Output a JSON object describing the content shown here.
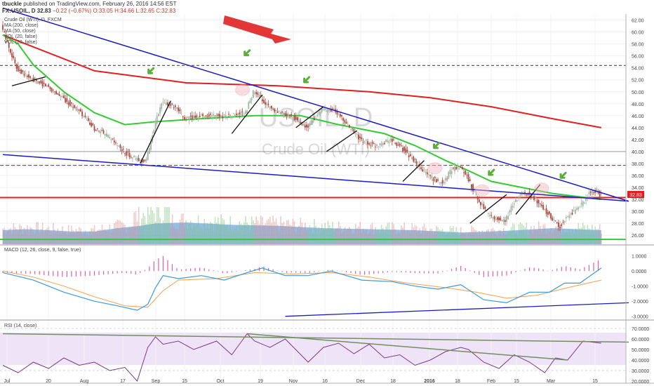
{
  "header": {
    "user": "tbuckle",
    "published_text": "published on TradingView.com, February 26, 2016 14:56 EST",
    "symbol": "FX:USOIL, D",
    "last": "32.83",
    "change": "−0.22 (−0.67%)",
    "ohlc": "O:33.05 H:34.66 L:32.65 C:32.83"
  },
  "legend": {
    "title": "Crude Oil (WTI), D, FXCM",
    "ma200": "MA (200, close)",
    "ma50": "MA (50, close)",
    "vol": "VOL (20, false)",
    "vol2": "VOL (20, false)"
  },
  "watermark": {
    "symbol": "USOIL, D",
    "name": "Crude Oil (WTI)"
  },
  "price_label": "32.83",
  "macd_label": "MACD (12, 26, close, 9, false, true)",
  "rsi_label": "RSI (14, close)",
  "colors": {
    "bull": "#9fb4a3",
    "bear": "#a8493f",
    "ma50": "#33cc33",
    "ma200": "#e02020",
    "trend": "#1c1cc4",
    "macd": "#3a9ad9",
    "signal": "#f0a050",
    "hist": "#e060a0",
    "rsi": "#7a3a8a",
    "volume": "#5b9bd5"
  },
  "chart_data": [
    {
      "type": "candlestick",
      "title": "USOIL, D",
      "ylim": [
        24.5,
        63
      ],
      "y_ticks": [
        "62.00",
        "60.00",
        "58.00",
        "56.00",
        "54.00",
        "52.00",
        "50.00",
        "48.00",
        "46.00",
        "44.00",
        "42.00",
        "40.00",
        "38.00",
        "36.00",
        "34.00",
        "32.00",
        "30.00",
        "28.00",
        "26.00"
      ],
      "x_ticks": [
        "Jul",
        "20",
        "Aug",
        "17",
        "Sep",
        "15",
        "Oct",
        "19",
        "Nov",
        "16",
        "Dec",
        "18",
        "2016",
        "18",
        "Feb",
        "15",
        "Mar",
        "15"
      ],
      "anchors": [
        [
          0,
          61
        ],
        [
          10,
          54
        ],
        [
          20,
          52
        ],
        [
          30,
          51
        ],
        [
          40,
          49
        ],
        [
          50,
          47
        ],
        [
          60,
          44
        ],
        [
          70,
          42.5
        ],
        [
          80,
          40
        ],
        [
          90,
          38.5
        ],
        [
          95,
          38.5
        ],
        [
          100,
          44
        ],
        [
          105,
          48
        ],
        [
          110,
          48
        ],
        [
          115,
          47
        ],
        [
          120,
          45.5
        ],
        [
          130,
          46
        ],
        [
          140,
          46
        ],
        [
          150,
          46
        ],
        [
          160,
          46.5
        ],
        [
          165,
          50
        ],
        [
          170,
          49
        ],
        [
          175,
          47.5
        ],
        [
          180,
          46.5
        ],
        [
          190,
          46
        ],
        [
          200,
          44
        ],
        [
          210,
          47
        ],
        [
          218,
          47
        ],
        [
          225,
          45
        ],
        [
          235,
          42
        ],
        [
          245,
          41
        ],
        [
          255,
          42
        ],
        [
          265,
          40
        ],
        [
          275,
          37
        ],
        [
          285,
          35
        ],
        [
          290,
          35
        ],
        [
          295,
          37
        ],
        [
          300,
          37.5
        ],
        [
          305,
          36
        ],
        [
          310,
          33
        ],
        [
          320,
          29
        ],
        [
          330,
          28.5
        ],
        [
          335,
          31
        ],
        [
          340,
          33
        ],
        [
          345,
          33
        ],
        [
          350,
          32
        ],
        [
          360,
          29
        ],
        [
          366,
          27.5
        ],
        [
          370,
          29
        ],
        [
          375,
          30
        ],
        [
          380,
          31
        ],
        [
          385,
          33
        ],
        [
          390,
          33.5
        ],
        [
          392,
          32.8
        ]
      ],
      "ma50": [
        [
          0,
          59.5
        ],
        [
          10,
          58
        ],
        [
          20,
          54.5
        ],
        [
          40,
          50
        ],
        [
          60,
          46.5
        ],
        [
          80,
          44.5
        ],
        [
          100,
          45
        ],
        [
          130,
          45.5
        ],
        [
          165,
          46
        ],
        [
          195,
          46
        ],
        [
          220,
          44.5
        ],
        [
          250,
          43
        ],
        [
          270,
          41
        ],
        [
          290,
          38.5
        ],
        [
          305,
          36.8
        ],
        [
          320,
          35
        ],
        [
          340,
          34
        ],
        [
          360,
          33
        ],
        [
          392,
          32
        ]
      ],
      "ma200": [
        [
          0,
          59.5
        ],
        [
          60,
          53.5
        ],
        [
          120,
          51.5
        ],
        [
          180,
          51
        ],
        [
          240,
          50
        ],
        [
          280,
          49
        ],
        [
          320,
          47.5
        ],
        [
          360,
          45.5
        ],
        [
          392,
          44
        ]
      ],
      "volume": [
        [
          0,
          0.42
        ],
        [
          15,
          0.45
        ],
        [
          30,
          0.42
        ],
        [
          45,
          0.38
        ],
        [
          60,
          0.38
        ],
        [
          75,
          0.48
        ],
        [
          90,
          0.55
        ],
        [
          100,
          0.62
        ],
        [
          120,
          0.65
        ],
        [
          150,
          0.58
        ],
        [
          180,
          0.55
        ],
        [
          210,
          0.48
        ],
        [
          240,
          0.45
        ],
        [
          270,
          0.42
        ],
        [
          300,
          0.35
        ],
        [
          330,
          0.4
        ],
        [
          360,
          0.48
        ],
        [
          392,
          0.42
        ]
      ],
      "levels": [
        {
          "price": 54.4,
          "style": "black-dashed"
        },
        {
          "price": 37.7,
          "style": "red-dashed"
        },
        {
          "price": 40.0,
          "style": "grey"
        },
        {
          "price": 32.3,
          "style": "red-solid"
        },
        {
          "price": 25.3,
          "style": "green-solid"
        }
      ],
      "trendlines": [
        {
          "from": [
            0,
            64
          ],
          "to": [
            410,
            31.7
          ],
          "color": "trend"
        },
        {
          "from": [
            0,
            39.5
          ],
          "to": [
            410,
            31.7
          ],
          "color": "trend"
        }
      ]
    },
    {
      "type": "macd",
      "title": "MACD (12, 26, close, 9, false, true)",
      "ylim": [
        -3.2,
        1.5
      ],
      "y_ticks": [
        "1.0000",
        "0.0000",
        "-1.0000",
        "-2.0000",
        "-3.0000"
      ],
      "macd": [
        [
          0,
          -0.1
        ],
        [
          20,
          -0.6
        ],
        [
          40,
          -1.4
        ],
        [
          60,
          -2.0
        ],
        [
          75,
          -2.3
        ],
        [
          88,
          -2.6
        ],
        [
          95,
          -2.2
        ],
        [
          100,
          -1.1
        ],
        [
          105,
          -0.3
        ],
        [
          115,
          -0.5
        ],
        [
          130,
          -0.3
        ],
        [
          145,
          -0.6
        ],
        [
          160,
          -0.1
        ],
        [
          170,
          0.2
        ],
        [
          185,
          -0.3
        ],
        [
          200,
          -0.3
        ],
        [
          215,
          0.0
        ],
        [
          235,
          -0.6
        ],
        [
          255,
          -0.7
        ],
        [
          270,
          -1.0
        ],
        [
          285,
          -1.2
        ],
        [
          300,
          -0.9
        ],
        [
          315,
          -1.9
        ],
        [
          330,
          -2.1
        ],
        [
          345,
          -1.4
        ],
        [
          358,
          -1.4
        ],
        [
          368,
          -0.8
        ],
        [
          378,
          -0.8
        ],
        [
          392,
          0.2
        ]
      ],
      "signal": [
        [
          0,
          0.0
        ],
        [
          20,
          -0.4
        ],
        [
          40,
          -1.0
        ],
        [
          60,
          -1.7
        ],
        [
          80,
          -2.3
        ],
        [
          95,
          -2.4
        ],
        [
          105,
          -1.3
        ],
        [
          115,
          -0.6
        ],
        [
          140,
          -0.5
        ],
        [
          165,
          -0.1
        ],
        [
          190,
          -0.2
        ],
        [
          215,
          -0.1
        ],
        [
          240,
          -0.4
        ],
        [
          265,
          -0.8
        ],
        [
          290,
          -1.1
        ],
        [
          310,
          -1.4
        ],
        [
          330,
          -1.8
        ],
        [
          350,
          -1.6
        ],
        [
          370,
          -1.1
        ],
        [
          392,
          -0.6
        ]
      ],
      "divergence_line": {
        "from": [
          185,
          -3.0
        ],
        "to": [
          410,
          -2.1
        ]
      }
    },
    {
      "type": "rsi",
      "title": "RSI (14, close)",
      "ylim": [
        18,
        74
      ],
      "y_ticks": [
        "70.0000",
        "60.0000",
        "50.0000",
        "40.0000",
        "30.0000",
        "20.0000"
      ],
      "rsi": [
        [
          0,
          35
        ],
        [
          10,
          28
        ],
        [
          20,
          38
        ],
        [
          30,
          32
        ],
        [
          40,
          42
        ],
        [
          50,
          35
        ],
        [
          60,
          38
        ],
        [
          70,
          30
        ],
        [
          80,
          33
        ],
        [
          88,
          20
        ],
        [
          95,
          52
        ],
        [
          100,
          62
        ],
        [
          105,
          55
        ],
        [
          115,
          58
        ],
        [
          125,
          50
        ],
        [
          140,
          58
        ],
        [
          150,
          45
        ],
        [
          160,
          65
        ],
        [
          165,
          58
        ],
        [
          175,
          52
        ],
        [
          185,
          60
        ],
        [
          200,
          38
        ],
        [
          210,
          52
        ],
        [
          220,
          56
        ],
        [
          230,
          46
        ],
        [
          240,
          55
        ],
        [
          250,
          42
        ],
        [
          260,
          45
        ],
        [
          270,
          35
        ],
        [
          280,
          40
        ],
        [
          290,
          48
        ],
        [
          300,
          52
        ],
        [
          305,
          50
        ],
        [
          315,
          38
        ],
        [
          325,
          32
        ],
        [
          335,
          45
        ],
        [
          345,
          38
        ],
        [
          355,
          28
        ],
        [
          362,
          42
        ],
        [
          370,
          40
        ],
        [
          380,
          58
        ],
        [
          392,
          56
        ]
      ],
      "lines": [
        {
          "from": [
            0,
            65
          ],
          "to": [
            410,
            57
          ]
        },
        {
          "from": [
            160,
            65
          ],
          "to": [
            370,
            40
          ]
        }
      ]
    }
  ]
}
